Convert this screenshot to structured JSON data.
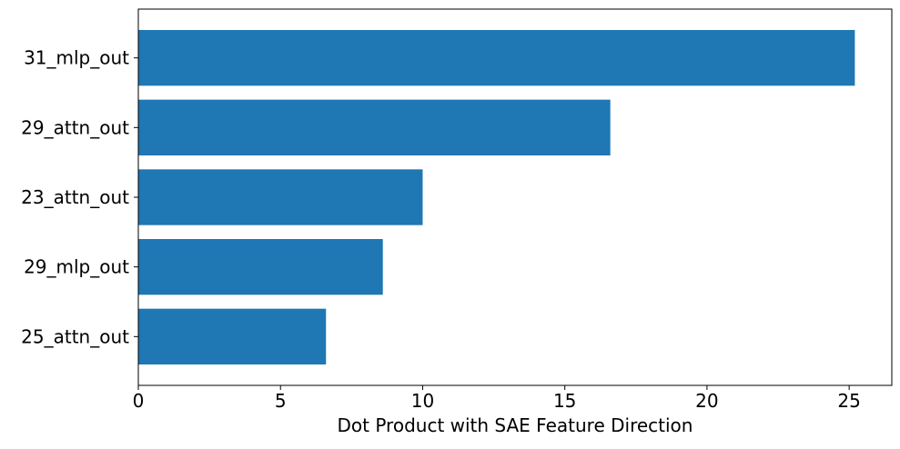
{
  "chart_data": {
    "type": "bar",
    "orientation": "horizontal",
    "categories": [
      "31_mlp_out",
      "29_attn_out",
      "23_attn_out",
      "29_mlp_out",
      "25_attn_out"
    ],
    "values": [
      25.2,
      16.6,
      10.0,
      8.6,
      6.6
    ],
    "xlabel": "Dot Product with SAE Feature Direction",
    "ylabel": "",
    "title": "",
    "xlim": [
      0,
      26.5
    ],
    "xticks": [
      0,
      5,
      10,
      15,
      20,
      25
    ],
    "xtick_labels": [
      "0",
      "5",
      "10",
      "15",
      "20",
      "25"
    ],
    "bar_color": "#1f77b4",
    "grid": false,
    "legend": "none"
  }
}
